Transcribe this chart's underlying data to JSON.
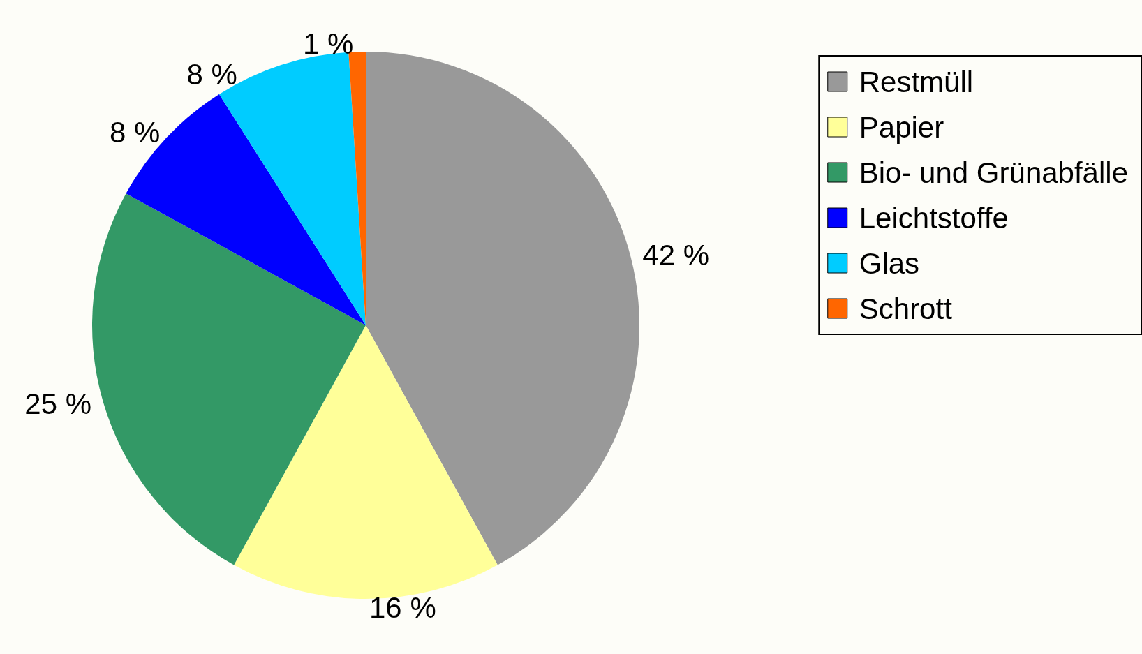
{
  "chart_data": {
    "type": "pie",
    "categories": [
      "Restmüll",
      "Papier",
      "Bio- und Grünabfälle",
      "Leichtstoffe",
      "Glas",
      "Schrott"
    ],
    "values": [
      42,
      16,
      25,
      8,
      8,
      1
    ],
    "colors": [
      "#999999",
      "#ffff99",
      "#339966",
      "#0000ff",
      "#00ccff",
      "#ff6600"
    ],
    "value_labels": [
      "42 %",
      "16 %",
      "25 %",
      "8 %",
      "8 %",
      "1 %"
    ],
    "legend": "top right"
  }
}
